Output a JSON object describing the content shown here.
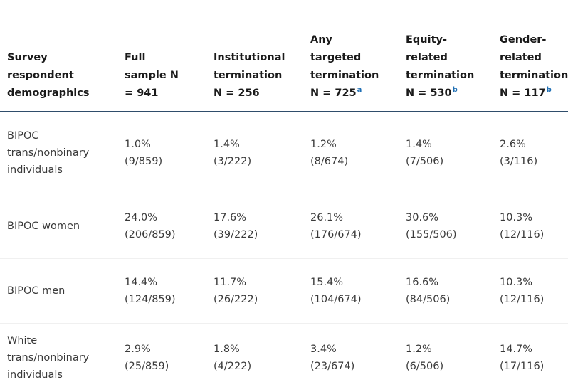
{
  "table": {
    "headers": [
      {
        "lines": [
          "Survey",
          "respondent",
          "demographics"
        ],
        "sup": ""
      },
      {
        "lines": [
          "Full",
          "sample N",
          "= 941"
        ],
        "sup": ""
      },
      {
        "lines": [
          "Institutional",
          "termination",
          "N = 256"
        ],
        "sup": ""
      },
      {
        "lines": [
          "Any",
          "targeted",
          "termination",
          "N = 725"
        ],
        "sup": "a"
      },
      {
        "lines": [
          "Equity-",
          "related",
          "termination",
          "N = 530"
        ],
        "sup": "b"
      },
      {
        "lines": [
          "Gender-",
          "related",
          "termination",
          "N = 117"
        ],
        "sup": "b"
      }
    ],
    "rows": [
      {
        "label": [
          "BIPOC",
          "trans/nonbinary",
          "individuals"
        ],
        "cells": [
          [
            "1.0%",
            "(9/859)"
          ],
          [
            "1.4%",
            "(3/222)"
          ],
          [
            "1.2%",
            "(8/674)"
          ],
          [
            "1.4%",
            "(7/506)"
          ],
          [
            "2.6%",
            "(3/116)"
          ]
        ]
      },
      {
        "label": [
          "BIPOC women"
        ],
        "cells": [
          [
            "24.0%",
            "(206/859)"
          ],
          [
            "17.6%",
            "(39/222)"
          ],
          [
            "26.1%",
            "(176/674)"
          ],
          [
            "30.6%",
            "(155/506)"
          ],
          [
            "10.3%",
            "(12/116)"
          ]
        ]
      },
      {
        "label": [
          "BIPOC men"
        ],
        "cells": [
          [
            "14.4%",
            "(124/859)"
          ],
          [
            "11.7%",
            "(26/222)"
          ],
          [
            "15.4%",
            "(104/674)"
          ],
          [
            "16.6%",
            "(84/506)"
          ],
          [
            "10.3%",
            "(12/116)"
          ]
        ]
      },
      {
        "label": [
          "White",
          "trans/nonbinary",
          "individuals"
        ],
        "cells": [
          [
            "2.9%",
            "(25/859)"
          ],
          [
            "1.8%",
            "(4/222)"
          ],
          [
            "3.4%",
            "(23/674)"
          ],
          [
            "1.2%",
            "(6/506)"
          ],
          [
            "14.7%",
            "(17/116)"
          ]
        ]
      }
    ],
    "colors": {
      "header_rule": "#2f4d6b",
      "superscript": "#1f6fb4",
      "row_divider": "#f0f0f0"
    }
  }
}
